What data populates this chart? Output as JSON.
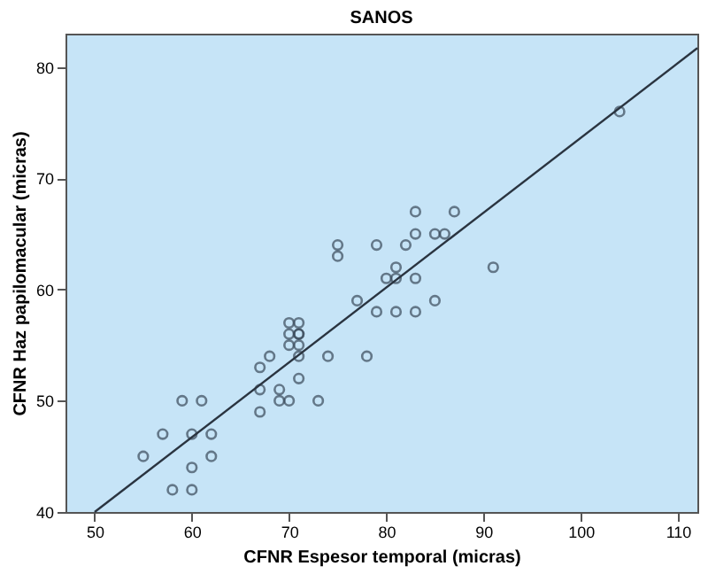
{
  "chart_data": {
    "type": "scatter",
    "title": "SANOS",
    "xlabel": "CFNR Espesor temporal (micras)",
    "ylabel": "CFNR Haz papilomacular (micras)",
    "xlim": [
      47,
      112
    ],
    "ylim": [
      40,
      83
    ],
    "xticks": [
      50,
      60,
      70,
      80,
      90,
      100,
      110
    ],
    "yticks": [
      40,
      50,
      60,
      70,
      80
    ],
    "grid": false,
    "series": [
      {
        "color": "#3a4a5a",
        "marker": "circle",
        "x": [
          104,
          83,
          87,
          85,
          86,
          83,
          75,
          79,
          82,
          75,
          81,
          91,
          80,
          81,
          83,
          77,
          85,
          79,
          81,
          83,
          70,
          71,
          70,
          71,
          71,
          70,
          71,
          68,
          71,
          74,
          78,
          67,
          67,
          69,
          71,
          59,
          61,
          69,
          70,
          73,
          67,
          57,
          60,
          62,
          55,
          62,
          60,
          58,
          60
        ],
        "values": [
          76,
          67,
          67,
          65,
          65,
          65,
          64,
          64,
          64,
          63,
          62,
          62,
          61,
          61,
          61,
          59,
          59,
          58,
          58,
          58,
          57,
          57,
          56,
          56,
          56,
          55,
          55,
          54,
          54,
          54,
          54,
          53,
          51,
          51,
          52,
          50,
          50,
          50,
          50,
          50,
          49,
          47,
          47,
          47,
          45,
          45,
          44,
          42,
          42
        ]
      },
      {
        "type": "line",
        "color": "#2a3440",
        "x": [
          50,
          112
        ],
        "values": [
          40,
          81.7
        ]
      }
    ]
  }
}
